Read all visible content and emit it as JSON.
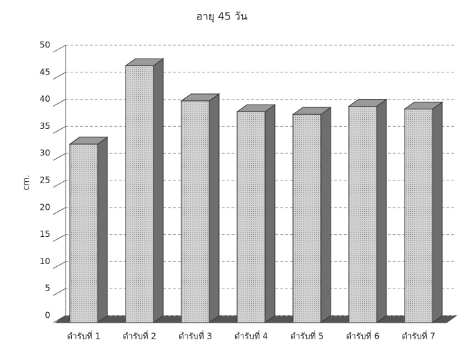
{
  "chart_data": {
    "type": "bar3d",
    "title": "อายุ 45 วัน",
    "y_label": "cm.",
    "categories": [
      "ตำรับที่ 1",
      "ตำรับที่ 2",
      "ตำรับที่ 3",
      "ตำรับที่ 4",
      "ตำรับที่ 5",
      "ตำรับที่ 6",
      "ตำรับที่ 7"
    ],
    "values": [
      33,
      47.5,
      41,
      39,
      38.5,
      40,
      39.5
    ],
    "color": "#c4c4c4",
    "ylim": [
      0,
      50
    ],
    "yticks": [
      0,
      5,
      10,
      15,
      20,
      25,
      30,
      35,
      40,
      45,
      50
    ],
    "grid": true
  }
}
